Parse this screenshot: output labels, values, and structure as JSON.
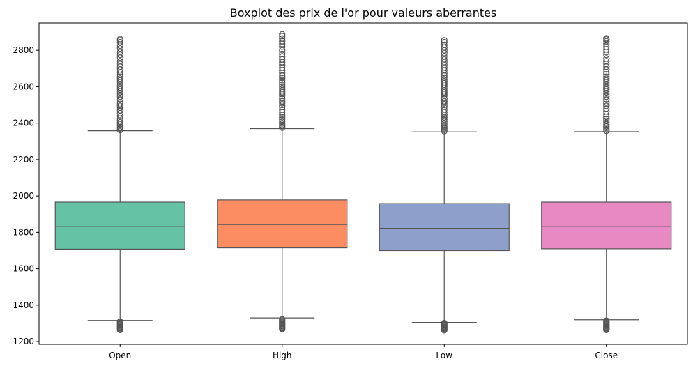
{
  "chart_data": {
    "type": "boxplot",
    "title": "Boxplot des prix de l'or pour valeurs aberrantes",
    "xlabel": "",
    "ylabel": "",
    "ylim": [
      1185,
      2950
    ],
    "yticks": [
      1200,
      1400,
      1600,
      1800,
      2000,
      2200,
      2400,
      2600,
      2800
    ],
    "grid": false,
    "categories": [
      "Open",
      "High",
      "Low",
      "Close"
    ],
    "boxes": [
      {
        "name": "Open",
        "color": "#66c2a5",
        "whisker_low": 1316,
        "q1": 1708,
        "median": 1831,
        "q3": 1966,
        "whisker_high": 2358,
        "outliers_low": [
          1264,
          1268,
          1272,
          1276,
          1280,
          1285,
          1290,
          1295,
          1300,
          1305,
          1310
        ],
        "outliers_high": [
          2362,
          2370,
          2378,
          2386,
          2395,
          2405,
          2415,
          2425,
          2440,
          2455,
          2470,
          2485,
          2495,
          2505,
          2515,
          2530,
          2545,
          2555,
          2565,
          2575,
          2585,
          2595,
          2605,
          2615,
          2625,
          2635,
          2645,
          2655,
          2665,
          2680,
          2695,
          2710,
          2725,
          2740,
          2760,
          2775,
          2790,
          2810,
          2825,
          2845,
          2855,
          2862
        ]
      },
      {
        "name": "High",
        "color": "#fc8d62",
        "whisker_low": 1330,
        "q1": 1715,
        "median": 1843,
        "q3": 1978,
        "whisker_high": 2370,
        "outliers_low": [
          1268,
          1272,
          1276,
          1280,
          1285,
          1290,
          1295,
          1300,
          1305,
          1310,
          1316,
          1322
        ],
        "outliers_high": [
          2375,
          2382,
          2390,
          2398,
          2408,
          2420,
          2432,
          2445,
          2460,
          2475,
          2490,
          2500,
          2510,
          2520,
          2535,
          2550,
          2560,
          2570,
          2580,
          2590,
          2600,
          2612,
          2624,
          2636,
          2648,
          2660,
          2675,
          2690,
          2705,
          2720,
          2735,
          2750,
          2765,
          2780,
          2800,
          2820,
          2835,
          2850,
          2865,
          2878,
          2888
        ]
      },
      {
        "name": "Low",
        "color": "#8da0cb",
        "whisker_low": 1305,
        "q1": 1700,
        "median": 1822,
        "q3": 1958,
        "whisker_high": 2352,
        "outliers_low": [
          1262,
          1266,
          1270,
          1274,
          1278,
          1282,
          1287,
          1292,
          1297,
          1302
        ],
        "outliers_high": [
          2356,
          2364,
          2372,
          2380,
          2390,
          2400,
          2410,
          2420,
          2432,
          2445,
          2460,
          2475,
          2490,
          2500,
          2510,
          2520,
          2535,
          2550,
          2560,
          2570,
          2580,
          2590,
          2600,
          2610,
          2620,
          2630,
          2640,
          2650,
          2662,
          2675,
          2690,
          2705,
          2720,
          2735,
          2750,
          2768,
          2785,
          2800,
          2815,
          2830,
          2845,
          2855
        ]
      },
      {
        "name": "Close",
        "color": "#e78ac3",
        "whisker_low": 1320,
        "q1": 1710,
        "median": 1831,
        "q3": 1966,
        "whisker_high": 2353,
        "outliers_low": [
          1264,
          1268,
          1272,
          1276,
          1280,
          1285,
          1290,
          1295,
          1300,
          1305,
          1310,
          1315
        ],
        "outliers_high": [
          2358,
          2366,
          2374,
          2382,
          2392,
          2402,
          2412,
          2422,
          2435,
          2450,
          2465,
          2480,
          2495,
          2505,
          2515,
          2530,
          2545,
          2555,
          2565,
          2575,
          2585,
          2595,
          2605,
          2615,
          2625,
          2635,
          2645,
          2655,
          2668,
          2680,
          2695,
          2710,
          2725,
          2740,
          2755,
          2775,
          2790,
          2805,
          2820,
          2835,
          2850,
          2860,
          2866
        ]
      }
    ],
    "style": {
      "line_color": "#555555",
      "axis_color": "#000000",
      "background": "#ffffff"
    }
  }
}
